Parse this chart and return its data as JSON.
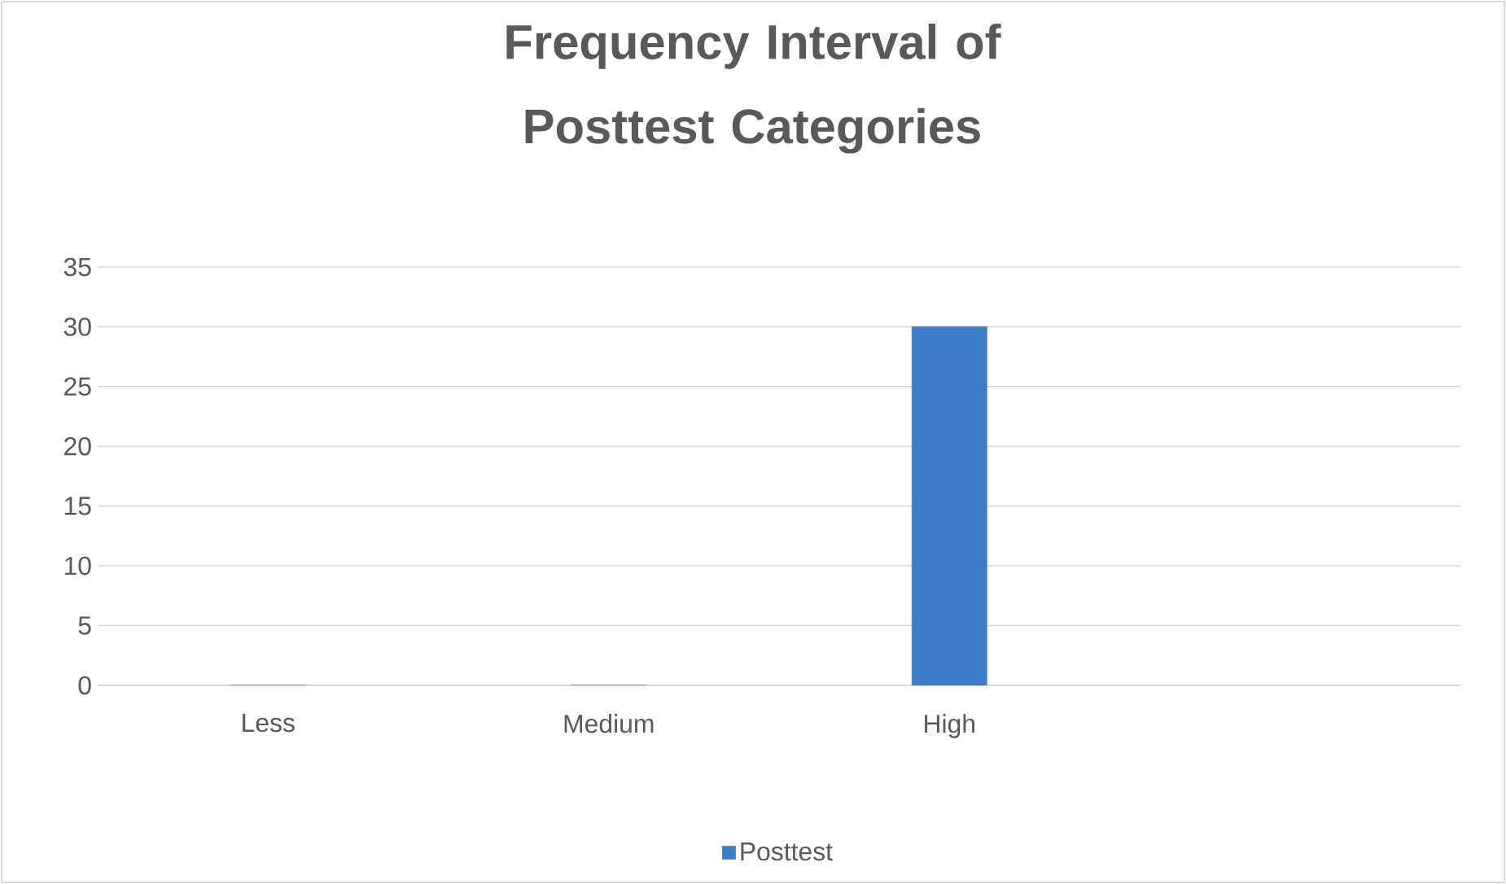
{
  "chart_data": {
    "type": "bar",
    "title": "Frequency Interval of Posttest Categories",
    "categories": [
      "Less",
      "Medium",
      "High",
      null
    ],
    "series": [
      {
        "name": "Posttest",
        "color": "#3d7cc9",
        "values": [
          0,
          0,
          30,
          null
        ]
      }
    ],
    "ylim": [
      0,
      35
    ],
    "yticks": [
      0,
      5,
      10,
      15,
      20,
      25,
      30,
      35
    ],
    "grid": "y",
    "legend": "bottom"
  }
}
